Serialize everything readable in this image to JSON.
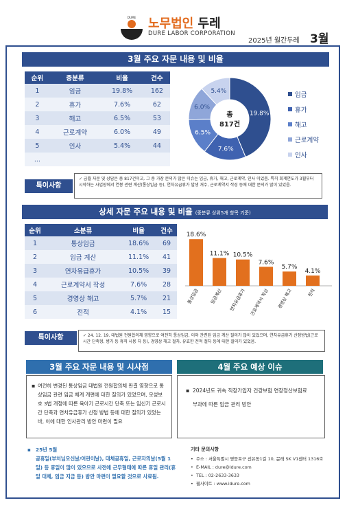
{
  "header": {
    "logo_word": "DURE",
    "brand_prefix": "노무법인",
    "brand_name": "두레",
    "brand_sub": "DURE LABOR CORPORATION",
    "issue_label": "2025년 월간두레",
    "issue_month": "3월"
  },
  "section1": {
    "title": "3월 주요 자문 내용 및 비율",
    "table": {
      "headers": [
        "순위",
        "중분류",
        "비율",
        "건수"
      ],
      "rows": [
        [
          "1",
          "임금",
          "19.8%",
          "162"
        ],
        [
          "2",
          "휴가",
          "7.6%",
          "62"
        ],
        [
          "3",
          "해고",
          "6.5%",
          "53"
        ],
        [
          "4",
          "근로계약",
          "6.0%",
          "49"
        ],
        [
          "5",
          "인사",
          "5.4%",
          "44"
        ],
        [
          "...",
          "",
          "",
          ""
        ]
      ]
    },
    "donut_center_line1": "총",
    "donut_center_line2": "817건",
    "note_label": "특이사항",
    "note_text": "✓ 금월 자문 및 상담은 총 817건이고, 그 중 가장 문의가 많은 이슈는 임금, 휴가, 해고, 근로계약, 인사 이었음. 특히 회계연도가 3월부터 시작하는 사업장에서 연봉 관련 계산(통상임금 등), 연차유급휴가 발생 개수, 근로계약서 작성 등에 대한 문의가 많이 있었음."
  },
  "section2": {
    "title": "상세 자문 주요 내용 및 비율",
    "title_small": "(중분류 상위5개 항목 기준)",
    "table": {
      "headers": [
        "순위",
        "소분류",
        "비율",
        "건수"
      ],
      "rows": [
        [
          "1",
          "통상임금",
          "18.6%",
          "69"
        ],
        [
          "2",
          "임금 계산",
          "11.1%",
          "41"
        ],
        [
          "3",
          "연차유급휴가",
          "10.5%",
          "39"
        ],
        [
          "4",
          "근로계약서 작성",
          "7.6%",
          "28"
        ],
        [
          "5",
          "경영상 해고",
          "5.7%",
          "21"
        ],
        [
          "6",
          "전적",
          "4.1%",
          "15"
        ]
      ]
    },
    "note_label": "특이사항",
    "note_text": "✓ 24. 12. 19. 대법원 전원합의체 영향으로 여전히 통상임금, 이와 관련된 임금 계산 질의가 많이 있었으며, 연차유급휴가 산정방법(근로시간 단축형, 병가 등 휴직 사용 자 등), 경영상 해고 절차, 유효한 전적 절차 등에 대한 질의가 있었음."
  },
  "chart_data": [
    {
      "type": "pie",
      "categories": [
        "임금",
        "휴가",
        "해고",
        "근로계약",
        "인사"
      ],
      "values": [
        19.8,
        7.6,
        6.5,
        6.0,
        5.4
      ],
      "colors": [
        "#2f4f8f",
        "#3f62b0",
        "#5b7fc9",
        "#8fa6d9",
        "#c8d3ee"
      ],
      "title": "",
      "center_label": "총 817건",
      "legend": "right"
    },
    {
      "type": "bar",
      "categories": [
        "통상임금",
        "임금계산",
        "연차유급휴가",
        "근로계약서 작성",
        "경영상 해고",
        "전적"
      ],
      "values": [
        18.6,
        11.1,
        10.5,
        7.6,
        5.7,
        4.1
      ],
      "data_labels": [
        "18.6%",
        "11.1%",
        "10.5%",
        "7.6%",
        "5.7%",
        "4.1%"
      ],
      "color": "#e2701e",
      "title": "",
      "ylim": [
        0,
        20
      ]
    }
  ],
  "section3": {
    "title": "3월 주요 자문 내용 및 시사점",
    "body": "여전히 변경된 통상임금 대법원 전원합의체 판결 영향으로 통상임금 관련 임금 체계 개편에 대한 질의가 있었으며, 모성보호 3법 개정에 따른 육아기 근로시간 단축 또는 임신기 근로시간 단축과 연차유급휴가 산정 방법 등에 대한 질의가 있었는바, 이에 대한 인사관리 방안 마련이 필요",
    "holiday_title": "25년 5월",
    "holiday_body": "공휴일(부처님오신날/어린이날), 대체공휴일, 근로자의날(5월 1일) 등 휴일이 많이 있으므로 사전에 근무형태에 따른 휴일 관리(휴일 대체, 임금 지급 등) 방안 마련이 필요할 것으로 사료됨."
  },
  "section4": {
    "title": "4월 주요 예상 이슈",
    "body_line1": "2024년도 귀속 직장가입자 건강보험 연장정산보험료",
    "body_line2": "부과에 따른 임금 관리 방안"
  },
  "contact": {
    "title": "기타 문의사항",
    "address": "주소 : 서울특별시 영등포구 선유동1길 10, 문래 SK V1센터 1316호",
    "email": "E-MAIL : dure@idure.com",
    "tel": "TEL : 02-2633-3633",
    "web": "웹사이트 : www.idure.com"
  }
}
